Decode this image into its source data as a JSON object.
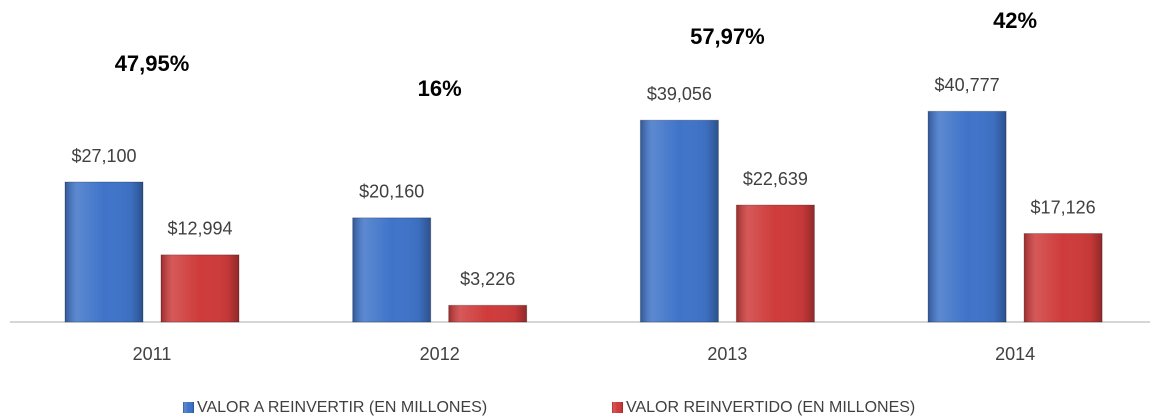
{
  "chart_data": {
    "type": "bar",
    "categories": [
      "2011",
      "2012",
      "2013",
      "2014"
    ],
    "series": [
      {
        "name": "VALOR A REINVERTIR (EN MILLONES)",
        "color": "#3f74c9",
        "values": [
          27100,
          20160,
          39056,
          40777
        ],
        "value_labels": [
          "$27,100",
          "$20,160",
          "$39,056",
          "$40,777"
        ]
      },
      {
        "name": "VALOR REINVERTIDO (EN MILLONES)",
        "color": "#cf3b3b",
        "values": [
          12994,
          3226,
          22639,
          17126
        ],
        "value_labels": [
          "$12,994",
          "$3,226",
          "$22,639",
          "$17,126"
        ]
      }
    ],
    "annotations": [
      "47,95%",
      "16%",
      "57,97%",
      "42%"
    ],
    "legend": "bottom"
  }
}
